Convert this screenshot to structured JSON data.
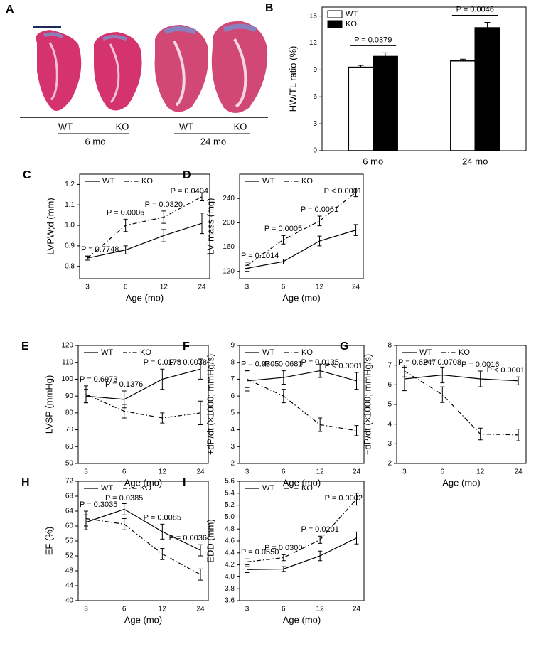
{
  "figure_a": {
    "label": "A",
    "groups": [
      {
        "labels": [
          "WT",
          "KO"
        ],
        "age": "6 mo"
      },
      {
        "labels": [
          "WT",
          "KO"
        ],
        "age": "24 mo"
      }
    ]
  },
  "chart_data": [
    {
      "type": "bar",
      "label": "B",
      "y_label": "HW/TL ratio (%)",
      "categories": [
        "6 mo",
        "24 mo"
      ],
      "ylim": [
        0,
        16
      ],
      "yticks": [
        0,
        3,
        6,
        9,
        12,
        15
      ],
      "legend": "top-left",
      "series": [
        {
          "name": "WT",
          "color": "#ffffff",
          "values": [
            9.3,
            10.0
          ],
          "errors": [
            0.2,
            0.2
          ]
        },
        {
          "name": "KO",
          "color": "#000000",
          "values": [
            10.5,
            13.7
          ],
          "errors": [
            0.4,
            0.6
          ]
        }
      ],
      "annotations": [
        "P = 0.0379",
        "P = 0.0046"
      ]
    },
    {
      "type": "line",
      "label": "C",
      "y_label": "LVPW;d (mm)",
      "x_label": "Age (mo)",
      "categories": [
        "3",
        "6",
        "12",
        "24"
      ],
      "ylim": [
        0.74,
        1.25
      ],
      "yticks": [
        0.8,
        0.9,
        {
          "value": 1,
          "label": "1.0"
        },
        1.1,
        1.2
      ],
      "legend": "top-left",
      "series": [
        {
          "name": "WT",
          "color": "#000000",
          "dash": "solid",
          "values": [
            0.84,
            0.88,
            0.95,
            1.01
          ],
          "errors": [
            0.01,
            0.02,
            0.03,
            0.05
          ]
        },
        {
          "name": "KO",
          "color": "#000000",
          "dash": "dashdot",
          "values": [
            0.84,
            1.0,
            1.04,
            1.14
          ],
          "errors": [
            0.01,
            0.03,
            0.03,
            0.02
          ]
        }
      ],
      "annotations": [
        "P = 0.7748",
        "P = 0.0005",
        "P = 0.0320",
        "P = 0.0404"
      ]
    },
    {
      "type": "line",
      "label": "D",
      "y_label": "LV mass (mg)",
      "x_label": "Age (mo)",
      "categories": [
        "3",
        "6",
        "12",
        "24"
      ],
      "ylim": [
        108,
        280
      ],
      "yticks": [
        120,
        160,
        200,
        240
      ],
      "legend": "top-left",
      "series": [
        {
          "name": "WT",
          "color": "#000000",
          "dash": "solid",
          "values": [
            125,
            136,
            170,
            188
          ],
          "errors": [
            5,
            4,
            8,
            9
          ]
        },
        {
          "name": "KO",
          "color": "#000000",
          "dash": "dashdot",
          "values": [
            130,
            172,
            203,
            250
          ],
          "errors": [
            5,
            7,
            8,
            7
          ]
        }
      ],
      "annotations": [
        "P = 0.1014",
        "P = 0.0005",
        "P = 0.0061",
        "P < 0.0001"
      ]
    },
    {
      "type": "line",
      "label": "E",
      "y_label": "LVSP (mmHg)",
      "x_label": "Age (mo)",
      "categories": [
        "3",
        "6",
        "12",
        "24"
      ],
      "ylim": [
        50,
        120
      ],
      "yticks": [
        50,
        60,
        70,
        80,
        90,
        100,
        110,
        120
      ],
      "legend": "top-left",
      "series": [
        {
          "name": "WT",
          "color": "#000000",
          "dash": "solid",
          "values": [
            90,
            88,
            100,
            106
          ],
          "errors": [
            4,
            5,
            6,
            6
          ]
        },
        {
          "name": "KO",
          "color": "#000000",
          "dash": "dashdot",
          "values": [
            91,
            81,
            77,
            80
          ],
          "errors": [
            5,
            4,
            3,
            7
          ]
        }
      ],
      "annotations": [
        "P = 0.6973",
        "P = 0.1376",
        "P = 0.0178",
        "P = 0.0038"
      ]
    },
    {
      "type": "line",
      "label": "F",
      "y_label": "+dP/dt (×1000; mmHg/s)",
      "x_label": "Age (mo)",
      "categories": [
        "3",
        "6",
        "12",
        "24"
      ],
      "ylim": [
        2,
        9
      ],
      "yticks": [
        2,
        3,
        4,
        5,
        6,
        7,
        8,
        9
      ],
      "legend": "top-left",
      "series": [
        {
          "name": "WT",
          "color": "#000000",
          "dash": "solid",
          "values": [
            6.9,
            7.1,
            7.5,
            6.9
          ],
          "errors": [
            0.6,
            0.4,
            0.4,
            0.5
          ]
        },
        {
          "name": "KO",
          "color": "#000000",
          "dash": "dashdot",
          "values": [
            7.0,
            6.0,
            4.3,
            3.95
          ],
          "errors": [
            0.5,
            0.4,
            0.4,
            0.3
          ]
        }
      ],
      "annotations": [
        "P = 0.9305",
        "P = 0.0681",
        "P = 0.0135",
        "P < 0.0001"
      ]
    },
    {
      "type": "line",
      "label": "G",
      "y_label": "−dP/dt (×1000; mmHg/s)",
      "x_label": "Age (mo)",
      "categories": [
        "3",
        "6",
        "12",
        "24"
      ],
      "ylim": [
        2,
        8
      ],
      "yticks": [
        2,
        3,
        4,
        5,
        6,
        7,
        8
      ],
      "legend": "top-left",
      "series": [
        {
          "name": "WT",
          "color": "#000000",
          "dash": "solid",
          "values": [
            6.3,
            6.5,
            6.3,
            6.2
          ],
          "errors": [
            0.6,
            0.4,
            0.4,
            0.2
          ]
        },
        {
          "name": "KO",
          "color": "#000000",
          "dash": "dashdot",
          "values": [
            6.7,
            5.5,
            3.5,
            3.45
          ],
          "errors": [
            0.3,
            0.4,
            0.3,
            0.3
          ]
        }
      ],
      "annotations": [
        "P = 0.6247",
        "P = 0.0708",
        "P = 0.0016",
        "P < 0.0001"
      ]
    },
    {
      "type": "line",
      "label": "H",
      "y_label": "EF (%)",
      "x_label": "Age (mo)",
      "categories": [
        "3",
        "6",
        "12",
        "24"
      ],
      "ylim": [
        40,
        72
      ],
      "yticks": [
        40,
        44,
        48,
        52,
        56,
        60,
        64,
        68,
        72
      ],
      "legend": "top-left",
      "series": [
        {
          "name": "WT",
          "color": "#000000",
          "dash": "solid",
          "values": [
            61,
            64.5,
            58.5,
            53.5
          ],
          "errors": [
            2,
            1.5,
            2,
            1.5
          ]
        },
        {
          "name": "KO",
          "color": "#000000",
          "dash": "dashdot",
          "values": [
            62,
            60.5,
            52.5,
            47
          ],
          "errors": [
            2,
            1.5,
            1.5,
            1.5
          ]
        }
      ],
      "annotations": [
        "P = 0.3035",
        "P = 0.0385",
        "P = 0.0085",
        "P = 0.0036"
      ]
    },
    {
      "type": "line",
      "label": "I",
      "y_label": "EDD (mm)",
      "x_label": "Age (mo)",
      "categories": [
        "3",
        "6",
        "12",
        "24"
      ],
      "ylim": [
        3.6,
        5.6
      ],
      "yticks": [
        3.6,
        3.8,
        {
          "value": 4,
          "label": "4.0"
        },
        4.2,
        4.4,
        4.6,
        4.8,
        {
          "value": 5,
          "label": "5.0"
        },
        5.2,
        5.4,
        5.6
      ],
      "legend": "top-left",
      "series": [
        {
          "name": "WT",
          "color": "#000000",
          "dash": "solid",
          "values": [
            4.12,
            4.13,
            4.35,
            4.65
          ],
          "errors": [
            0.05,
            0.04,
            0.08,
            0.1
          ]
        },
        {
          "name": "KO",
          "color": "#000000",
          "dash": "dashdot",
          "values": [
            4.25,
            4.32,
            4.62,
            5.3
          ],
          "errors": [
            0.05,
            0.05,
            0.06,
            0.1
          ]
        }
      ],
      "annotations": [
        "P = 0.0550",
        "P = 0.0300",
        "P = 0.0201",
        "P = 0.0002"
      ]
    }
  ]
}
